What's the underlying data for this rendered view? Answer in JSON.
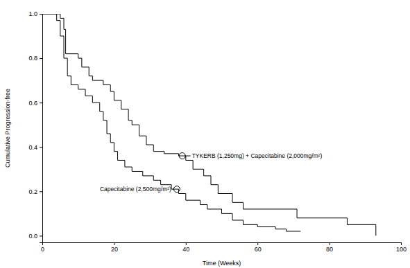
{
  "chart_data": {
    "type": "line",
    "x_label": "Time (Weeks)",
    "y_label": "Cumulative Progression-free",
    "xlim": [
      0,
      100
    ],
    "xticks": [
      0,
      20,
      40,
      60,
      80,
      100
    ],
    "ylim": [
      -0.03,
      1.0
    ],
    "yticks": [
      {
        "value": 0,
        "label": "0.0"
      },
      {
        "value": 0.2,
        "label": "0.2"
      },
      {
        "value": 0.4,
        "label": "0.4"
      },
      {
        "value": 0.6,
        "label": "0.6"
      },
      {
        "value": 0.8,
        "label": "0.8"
      },
      {
        "value": 1,
        "label": "1.0"
      }
    ],
    "grid": false,
    "line_style": "step",
    "series": [
      {
        "color": "#000000",
        "x": [
          0,
          5,
          6,
          6.5,
          10,
          11,
          13,
          14,
          17,
          19,
          20,
          22,
          24,
          25,
          27,
          29,
          31,
          34,
          38,
          40,
          42,
          45,
          47,
          49,
          53,
          56,
          71,
          85,
          93
        ],
        "values": [
          1.0,
          0.98,
          0.93,
          0.82,
          0.8,
          0.76,
          0.72,
          0.7,
          0.68,
          0.65,
          0.61,
          0.57,
          0.52,
          0.5,
          0.45,
          0.41,
          0.38,
          0.37,
          0.36,
          0.34,
          0.3,
          0.27,
          0.23,
          0.19,
          0.15,
          0.12,
          0.08,
          0.05,
          0.0
        ]
      },
      {
        "color": "#000000",
        "x": [
          0,
          4,
          5,
          6,
          7,
          8,
          10,
          12,
          14,
          16,
          17,
          18,
          19,
          20,
          21,
          23,
          25,
          28,
          31,
          33,
          36,
          38,
          40,
          44,
          46,
          50,
          53,
          56,
          60,
          65,
          68,
          72
        ],
        "values": [
          1.0,
          0.97,
          0.9,
          0.8,
          0.72,
          0.68,
          0.66,
          0.63,
          0.6,
          0.56,
          0.52,
          0.46,
          0.42,
          0.38,
          0.34,
          0.31,
          0.29,
          0.27,
          0.25,
          0.23,
          0.21,
          0.19,
          0.16,
          0.14,
          0.12,
          0.1,
          0.07,
          0.05,
          0.04,
          0.03,
          0.02,
          0.02
        ]
      }
    ],
    "annotations": [
      {
        "text": "TYKERB (1,250mg) + Capecitabine (2,000mg/m²)",
        "x": 39,
        "y": 0.36
      },
      {
        "text": "Capecitabine (2,500mg/m²)",
        "x": 37.5,
        "y": 0.21
      }
    ]
  }
}
